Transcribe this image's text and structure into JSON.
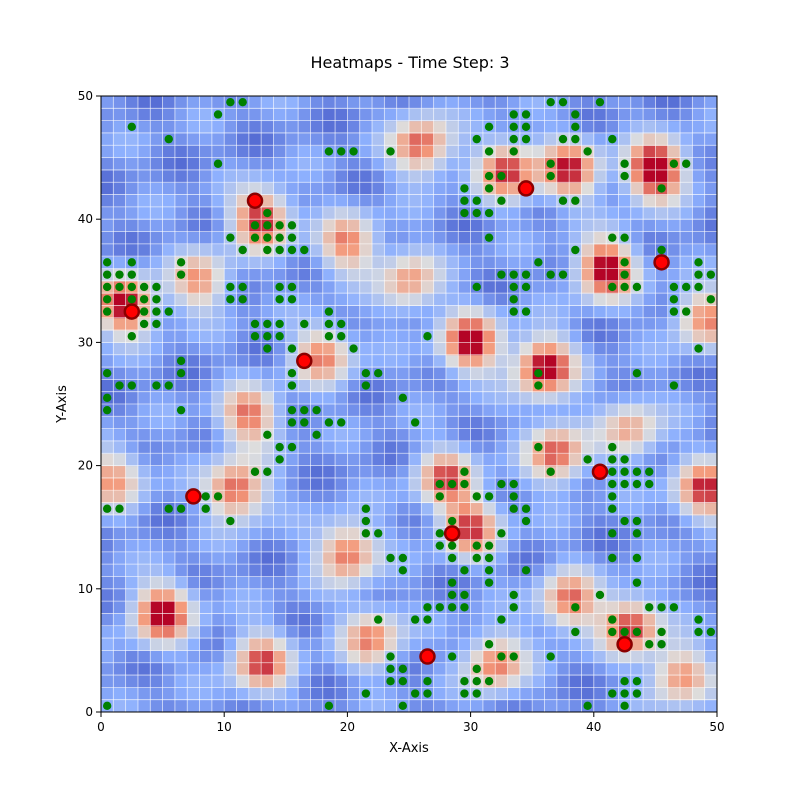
{
  "chart_data": {
    "type": "heatmap",
    "title": "Heatmaps - Time Step: 3",
    "xlabel": "X-Axis",
    "ylabel": "Y-Axis",
    "xlim": [
      0,
      50
    ],
    "ylim": [
      0,
      50
    ],
    "xticks": [
      0,
      10,
      20,
      30,
      40,
      50
    ],
    "yticks": [
      0,
      10,
      20,
      30,
      40,
      50
    ],
    "grid": true,
    "colormap": "coolwarm",
    "colors": {
      "low": "#3b4cc0",
      "mid": "#dddddd",
      "high": "#b40426",
      "marker_green": "#008000",
      "marker_red": "#ff0000",
      "marker_edge": "#8b0000",
      "grid": "#ffffff"
    },
    "hotspots": [
      {
        "x": 45,
        "y": 44,
        "v": 1.0
      },
      {
        "x": 41,
        "y": 36,
        "v": 0.9
      },
      {
        "x": 36,
        "y": 28,
        "v": 0.9
      },
      {
        "x": 30,
        "y": 30,
        "v": 0.85
      },
      {
        "x": 13,
        "y": 40,
        "v": 0.8
      },
      {
        "x": 2,
        "y": 33,
        "v": 0.85
      },
      {
        "x": 5,
        "y": 8,
        "v": 0.85
      },
      {
        "x": 11,
        "y": 18,
        "v": 0.75
      },
      {
        "x": 26,
        "y": 46,
        "v": 0.7
      },
      {
        "x": 33,
        "y": 44,
        "v": 0.75
      },
      {
        "x": 38,
        "y": 44,
        "v": 0.75
      },
      {
        "x": 20,
        "y": 13,
        "v": 0.7
      },
      {
        "x": 30,
        "y": 15,
        "v": 0.7
      },
      {
        "x": 28,
        "y": 19,
        "v": 0.65
      },
      {
        "x": 37,
        "y": 21,
        "v": 0.7
      },
      {
        "x": 43,
        "y": 7,
        "v": 0.75
      },
      {
        "x": 38,
        "y": 9,
        "v": 0.65
      },
      {
        "x": 32,
        "y": 4,
        "v": 0.65
      },
      {
        "x": 13,
        "y": 4,
        "v": 0.7
      },
      {
        "x": 49,
        "y": 18,
        "v": 0.75
      },
      {
        "x": 47,
        "y": 3,
        "v": 0.6
      },
      {
        "x": 22,
        "y": 6,
        "v": 0.6
      },
      {
        "x": 12,
        "y": 24,
        "v": 0.65
      },
      {
        "x": 20,
        "y": 38,
        "v": 0.6
      },
      {
        "x": 8,
        "y": 35,
        "v": 0.55
      },
      {
        "x": 25,
        "y": 35,
        "v": 0.55
      },
      {
        "x": 49,
        "y": 32,
        "v": 0.6
      },
      {
        "x": 1,
        "y": 19,
        "v": 0.55
      },
      {
        "x": 18,
        "y": 29,
        "v": 0.6
      },
      {
        "x": 43,
        "y": 23,
        "v": 0.5
      }
    ],
    "green_points": [
      [
        0.5,
        0.5
      ],
      [
        0.5,
        16.5
      ],
      [
        1.5,
        16.5
      ],
      [
        0.5,
        24.5
      ],
      [
        0.5,
        25.5
      ],
      [
        0.5,
        27.5
      ],
      [
        1.5,
        26.5
      ],
      [
        2.5,
        26.5
      ],
      [
        0.5,
        32.5
      ],
      [
        0.5,
        33.5
      ],
      [
        0.5,
        34.5
      ],
      [
        0.5,
        35.5
      ],
      [
        0.5,
        36.5
      ],
      [
        1.5,
        34.5
      ],
      [
        1.5,
        35.5
      ],
      [
        2.5,
        33.5
      ],
      [
        2.5,
        34.5
      ],
      [
        2.5,
        35.5
      ],
      [
        2.5,
        36.5
      ],
      [
        2.5,
        30.5
      ],
      [
        3.5,
        31.5
      ],
      [
        3.5,
        32.5
      ],
      [
        3.5,
        33.5
      ],
      [
        3.5,
        34.5
      ],
      [
        4.5,
        31.5
      ],
      [
        4.5,
        32.5
      ],
      [
        4.5,
        33.5
      ],
      [
        4.5,
        34.5
      ],
      [
        5.5,
        32.5
      ],
      [
        4.5,
        26.5
      ],
      [
        5.5,
        26.5
      ],
      [
        6.5,
        24.5
      ],
      [
        6.5,
        27.5
      ],
      [
        6.5,
        28.5
      ],
      [
        6.5,
        35.5
      ],
      [
        6.5,
        36.5
      ],
      [
        5.5,
        46.5
      ],
      [
        2.5,
        47.5
      ],
      [
        5.5,
        16.5
      ],
      [
        6.5,
        16.5
      ],
      [
        8.5,
        16.5
      ],
      [
        8.5,
        17.5
      ],
      [
        9.5,
        17.5
      ],
      [
        9.5,
        44.5
      ],
      [
        9.5,
        48.5
      ],
      [
        10.5,
        49.5
      ],
      [
        11.5,
        49.5
      ],
      [
        10.5,
        38.5
      ],
      [
        10.5,
        34.5
      ],
      [
        10.5,
        33.5
      ],
      [
        11.5,
        34.5
      ],
      [
        11.5,
        33.5
      ],
      [
        10.5,
        15.5
      ],
      [
        12.5,
        19.5
      ],
      [
        13.5,
        19.5
      ],
      [
        12.5,
        31.5
      ],
      [
        12.5,
        30.5
      ],
      [
        13.5,
        30.5
      ],
      [
        13.5,
        29.5
      ],
      [
        13.5,
        31.5
      ],
      [
        12.5,
        38.5
      ],
      [
        12.5,
        39.5
      ],
      [
        13.5,
        38.5
      ],
      [
        13.5,
        39.5
      ],
      [
        13.5,
        40.5
      ],
      [
        14.5,
        38.5
      ],
      [
        14.5,
        39.5
      ],
      [
        15.5,
        38.5
      ],
      [
        15.5,
        39.5
      ],
      [
        13.5,
        37.5
      ],
      [
        14.5,
        37.5
      ],
      [
        15.5,
        37.5
      ],
      [
        16.5,
        37.5
      ],
      [
        11.5,
        37.5
      ],
      [
        14.5,
        34.5
      ],
      [
        15.5,
        34.5
      ],
      [
        14.5,
        33.5
      ],
      [
        15.5,
        33.5
      ],
      [
        14.5,
        31.5
      ],
      [
        14.5,
        30.5
      ],
      [
        16.5,
        31.5
      ],
      [
        15.5,
        29.5
      ],
      [
        15.5,
        27.5
      ],
      [
        15.5,
        26.5
      ],
      [
        18.5,
        32.5
      ],
      [
        18.5,
        31.5
      ],
      [
        18.5,
        30.5
      ],
      [
        19.5,
        31.5
      ],
      [
        19.5,
        30.5
      ],
      [
        20.5,
        29.5
      ],
      [
        15.5,
        24.5
      ],
      [
        16.5,
        24.5
      ],
      [
        17.5,
        24.5
      ],
      [
        15.5,
        23.5
      ],
      [
        16.5,
        23.5
      ],
      [
        18.5,
        23.5
      ],
      [
        19.5,
        23.5
      ],
      [
        17.5,
        22.5
      ],
      [
        14.5,
        21.5
      ],
      [
        15.5,
        21.5
      ],
      [
        14.5,
        20.5
      ],
      [
        13.5,
        22.5
      ],
      [
        18.5,
        45.5
      ],
      [
        19.5,
        45.5
      ],
      [
        20.5,
        45.5
      ],
      [
        23.5,
        45.5
      ],
      [
        21.5,
        27.5
      ],
      [
        22.5,
        27.5
      ],
      [
        21.5,
        26.5
      ],
      [
        24.5,
        25.5
      ],
      [
        25.5,
        23.5
      ],
      [
        26.5,
        30.5
      ],
      [
        21.5,
        16.5
      ],
      [
        21.5,
        15.5
      ],
      [
        22.5,
        14.5
      ],
      [
        21.5,
        14.5
      ],
      [
        23.5,
        12.5
      ],
      [
        24.5,
        12.5
      ],
      [
        24.5,
        11.5
      ],
      [
        22.5,
        7.5
      ],
      [
        23.5,
        4.5
      ],
      [
        23.5,
        3.5
      ],
      [
        24.5,
        3.5
      ],
      [
        23.5,
        2.5
      ],
      [
        24.5,
        2.5
      ],
      [
        25.5,
        1.5
      ],
      [
        26.5,
        1.5
      ],
      [
        26.5,
        2.5
      ],
      [
        21.5,
        1.5
      ],
      [
        18.5,
        0.5
      ],
      [
        24.5,
        0.5
      ],
      [
        25.5,
        7.5
      ],
      [
        26.5,
        8.5
      ],
      [
        27.5,
        8.5
      ],
      [
        26.5,
        7.5
      ],
      [
        28.5,
        8.5
      ],
      [
        29.5,
        8.5
      ],
      [
        28.5,
        9.5
      ],
      [
        28.5,
        10.5
      ],
      [
        29.5,
        9.5
      ],
      [
        28.5,
        12.5
      ],
      [
        28.5,
        13.5
      ],
      [
        27.5,
        13.5
      ],
      [
        28.5,
        15.5
      ],
      [
        27.5,
        14.5
      ],
      [
        29.5,
        11.5
      ],
      [
        28.5,
        4.5
      ],
      [
        29.5,
        2.5
      ],
      [
        29.5,
        1.5
      ],
      [
        30.5,
        2.5
      ],
      [
        30.5,
        1.5
      ],
      [
        31.5,
        2.5
      ],
      [
        30.5,
        3.5
      ],
      [
        31.5,
        5.5
      ],
      [
        32.5,
        4.5
      ],
      [
        33.5,
        4.5
      ],
      [
        32.5,
        7.5
      ],
      [
        33.5,
        8.5
      ],
      [
        33.5,
        9.5
      ],
      [
        30.5,
        12.5
      ],
      [
        30.5,
        13.5
      ],
      [
        31.5,
        13.5
      ],
      [
        31.5,
        12.5
      ],
      [
        31.5,
        11.5
      ],
      [
        31.5,
        10.5
      ],
      [
        32.5,
        14.5
      ],
      [
        34.5,
        11.5
      ],
      [
        27.5,
        17.5
      ],
      [
        27.5,
        18.5
      ],
      [
        28.5,
        18.5
      ],
      [
        29.5,
        18.5
      ],
      [
        29.5,
        19.5
      ],
      [
        30.5,
        17.5
      ],
      [
        31.5,
        17.5
      ],
      [
        32.5,
        18.5
      ],
      [
        33.5,
        18.5
      ],
      [
        33.5,
        17.5
      ],
      [
        33.5,
        16.5
      ],
      [
        34.5,
        16.5
      ],
      [
        34.5,
        15.5
      ],
      [
        35.5,
        21.5
      ],
      [
        35.5,
        26.5
      ],
      [
        35.5,
        27.5
      ],
      [
        33.5,
        32.5
      ],
      [
        33.5,
        33.5
      ],
      [
        34.5,
        32.5
      ],
      [
        33.5,
        34.5
      ],
      [
        34.5,
        34.5
      ],
      [
        33.5,
        35.5
      ],
      [
        34.5,
        35.5
      ],
      [
        35.5,
        36.5
      ],
      [
        36.5,
        35.5
      ],
      [
        37.5,
        35.5
      ],
      [
        38.5,
        37.5
      ],
      [
        31.5,
        38.5
      ],
      [
        32.5,
        35.5
      ],
      [
        30.5,
        34.5
      ],
      [
        29.5,
        42.5
      ],
      [
        29.5,
        41.5
      ],
      [
        29.5,
        40.5
      ],
      [
        30.5,
        41.5
      ],
      [
        30.5,
        40.5
      ],
      [
        31.5,
        43.5
      ],
      [
        31.5,
        42.5
      ],
      [
        31.5,
        40.5
      ],
      [
        32.5,
        41.5
      ],
      [
        32.5,
        43.5
      ],
      [
        31.5,
        45.5
      ],
      [
        30.5,
        46.5
      ],
      [
        31.5,
        47.5
      ],
      [
        33.5,
        48.5
      ],
      [
        33.5,
        47.5
      ],
      [
        33.5,
        46.5
      ],
      [
        33.5,
        45.5
      ],
      [
        34.5,
        48.5
      ],
      [
        34.5,
        47.5
      ],
      [
        34.5,
        46.5
      ],
      [
        36.5,
        49.5
      ],
      [
        37.5,
        49.5
      ],
      [
        36.5,
        44.5
      ],
      [
        36.5,
        43.5
      ],
      [
        37.5,
        41.5
      ],
      [
        38.5,
        41.5
      ],
      [
        37.5,
        46.5
      ],
      [
        38.5,
        46.5
      ],
      [
        38.5,
        47.5
      ],
      [
        38.5,
        48.5
      ],
      [
        39.5,
        45.5
      ],
      [
        41.5,
        46.5
      ],
      [
        40.5,
        49.5
      ],
      [
        38.5,
        8.5
      ],
      [
        38.5,
        6.5
      ],
      [
        39.5,
        0.5
      ],
      [
        36.5,
        4.5
      ],
      [
        36.5,
        19.5
      ],
      [
        39.5,
        20.5
      ],
      [
        40.5,
        9.5
      ],
      [
        41.5,
        21.5
      ],
      [
        41.5,
        20.5
      ],
      [
        41.5,
        19.5
      ],
      [
        41.5,
        18.5
      ],
      [
        41.5,
        17.5
      ],
      [
        42.5,
        20.5
      ],
      [
        42.5,
        19.5
      ],
      [
        42.5,
        18.5
      ],
      [
        43.5,
        19.5
      ],
      [
        43.5,
        18.5
      ],
      [
        44.5,
        19.5
      ],
      [
        44.5,
        18.5
      ],
      [
        41.5,
        16.5
      ],
      [
        41.5,
        14.5
      ],
      [
        42.5,
        15.5
      ],
      [
        43.5,
        15.5
      ],
      [
        43.5,
        14.5
      ],
      [
        41.5,
        12.5
      ],
      [
        43.5,
        12.5
      ],
      [
        43.5,
        10.5
      ],
      [
        41.5,
        7.5
      ],
      [
        41.5,
        6.5
      ],
      [
        42.5,
        6.5
      ],
      [
        43.5,
        6.5
      ],
      [
        41.5,
        1.5
      ],
      [
        42.5,
        0.5
      ],
      [
        42.5,
        1.5
      ],
      [
        42.5,
        2.5
      ],
      [
        43.5,
        1.5
      ],
      [
        43.5,
        2.5
      ],
      [
        44.5,
        8.5
      ],
      [
        45.5,
        8.5
      ],
      [
        46.5,
        8.5
      ],
      [
        45.5,
        6.5
      ],
      [
        44.5,
        5.5
      ],
      [
        45.5,
        5.5
      ],
      [
        48.5,
        6.5
      ],
      [
        49.5,
        6.5
      ],
      [
        48.5,
        7.5
      ],
      [
        41.5,
        38.5
      ],
      [
        42.5,
        38.5
      ],
      [
        42.5,
        36.5
      ],
      [
        42.5,
        35.5
      ],
      [
        42.5,
        34.5
      ],
      [
        43.5,
        34.5
      ],
      [
        41.5,
        34.5
      ],
      [
        42.5,
        43.5
      ],
      [
        42.5,
        44.5
      ],
      [
        45.5,
        42.5
      ],
      [
        46.5,
        44.5
      ],
      [
        47.5,
        44.5
      ],
      [
        45.5,
        37.5
      ],
      [
        46.5,
        34.5
      ],
      [
        47.5,
        34.5
      ],
      [
        46.5,
        33.5
      ],
      [
        46.5,
        32.5
      ],
      [
        47.5,
        32.5
      ],
      [
        48.5,
        34.5
      ],
      [
        48.5,
        35.5
      ],
      [
        48.5,
        36.5
      ],
      [
        49.5,
        35.5
      ],
      [
        49.5,
        33.5
      ],
      [
        48.5,
        29.5
      ],
      [
        43.5,
        27.5
      ],
      [
        46.5,
        26.5
      ]
    ],
    "red_points": [
      [
        2.5,
        32.5
      ],
      [
        12.5,
        41.5
      ],
      [
        16.5,
        28.5
      ],
      [
        7.5,
        17.5
      ],
      [
        26.5,
        4.5
      ],
      [
        28.5,
        14.5
      ],
      [
        34.5,
        42.5
      ],
      [
        40.5,
        19.5
      ],
      [
        42.5,
        5.5
      ],
      [
        45.5,
        36.5
      ]
    ]
  }
}
